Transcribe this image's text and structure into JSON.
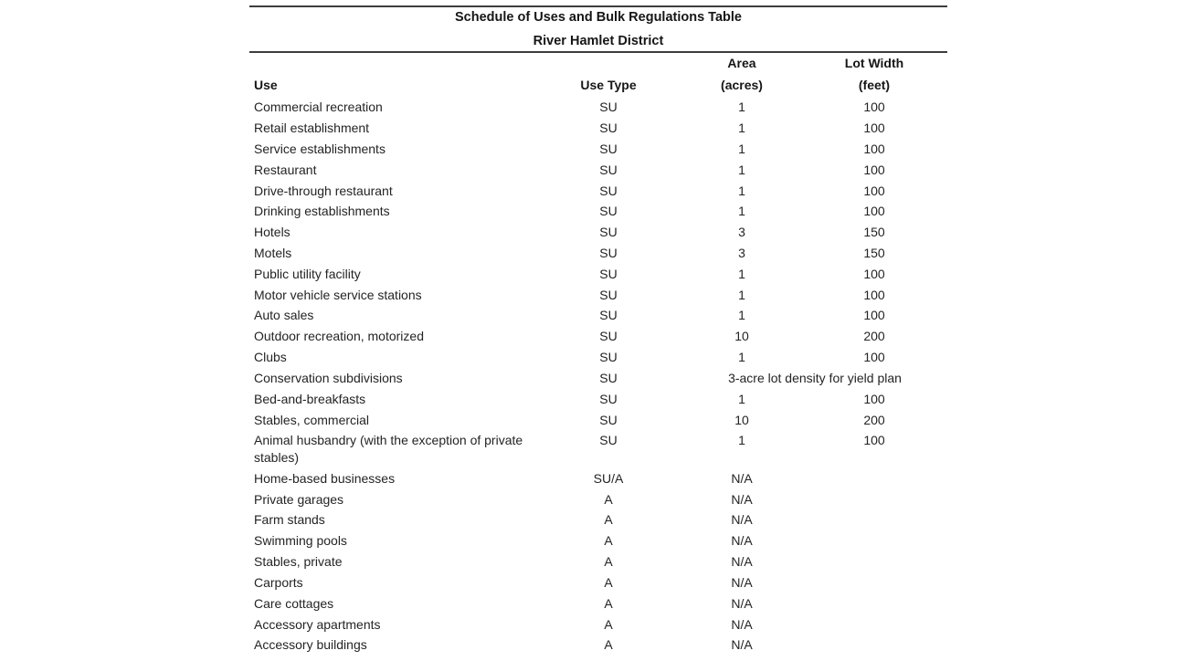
{
  "page": {
    "title": "Schedule of Uses and Bulk Regulations Table",
    "subtitle": "River Hamlet District"
  },
  "colors": {
    "text": "#242424",
    "heading_text": "#161616",
    "rule": "#3d3d3d",
    "background": "#ffffff"
  },
  "table": {
    "columns": [
      {
        "label_top": "",
        "label": "Use"
      },
      {
        "label_top": "",
        "label": "Use Type"
      },
      {
        "label_top": "Area",
        "label": "(acres)"
      },
      {
        "label_top": "Lot Width",
        "label": "(feet)"
      }
    ],
    "rows": [
      {
        "use": "Commercial recreation",
        "use_type": "SU",
        "area": "1",
        "lot_width": "100"
      },
      {
        "use": "Retail establishment",
        "use_type": "SU",
        "area": "1",
        "lot_width": "100"
      },
      {
        "use": "Service establishments",
        "use_type": "SU",
        "area": "1",
        "lot_width": "100"
      },
      {
        "use": "Restaurant",
        "use_type": "SU",
        "area": "1",
        "lot_width": "100"
      },
      {
        "use": "Drive-through restaurant",
        "use_type": "SU",
        "area": "1",
        "lot_width": "100"
      },
      {
        "use": "Drinking establishments",
        "use_type": "SU",
        "area": "1",
        "lot_width": "100"
      },
      {
        "use": "Hotels",
        "use_type": "SU",
        "area": "3",
        "lot_width": "150"
      },
      {
        "use": "Motels",
        "use_type": "SU",
        "area": "3",
        "lot_width": "150"
      },
      {
        "use": "Public utility facility",
        "use_type": "SU",
        "area": "1",
        "lot_width": "100"
      },
      {
        "use": "Motor vehicle service stations",
        "use_type": "SU",
        "area": "1",
        "lot_width": "100"
      },
      {
        "use": "Auto sales",
        "use_type": "SU",
        "area": "1",
        "lot_width": "100"
      },
      {
        "use": "Outdoor recreation, motorized",
        "use_type": "SU",
        "area": "10",
        "lot_width": "200"
      },
      {
        "use": "Clubs",
        "use_type": "SU",
        "area": "1",
        "lot_width": "100"
      },
      {
        "use": "Conservation subdivisions",
        "use_type": "SU",
        "area_span": "3-acre lot density for yield plan"
      },
      {
        "use": "Bed-and-breakfasts",
        "use_type": "SU",
        "area": "1",
        "lot_width": "100"
      },
      {
        "use": "Stables, commercial",
        "use_type": "SU",
        "area": "10",
        "lot_width": "200"
      },
      {
        "use": "Animal husbandry (with the exception of private stables)",
        "use_type": "SU",
        "area": "1",
        "lot_width": "100"
      },
      {
        "use": "Home-based businesses",
        "use_type": "SU/A",
        "area": "N/A",
        "lot_width": ""
      },
      {
        "use": "Private garages",
        "use_type": "A",
        "area": "N/A",
        "lot_width": ""
      },
      {
        "use": "Farm stands",
        "use_type": "A",
        "area": "N/A",
        "lot_width": ""
      },
      {
        "use": "Swimming pools",
        "use_type": "A",
        "area": "N/A",
        "lot_width": ""
      },
      {
        "use": "Stables, private",
        "use_type": "A",
        "area": "N/A",
        "lot_width": ""
      },
      {
        "use": "Carports",
        "use_type": "A",
        "area": "N/A",
        "lot_width": ""
      },
      {
        "use": "Care cottages",
        "use_type": "A",
        "area": "N/A",
        "lot_width": ""
      },
      {
        "use": "Accessory apartments",
        "use_type": "A",
        "area": "N/A",
        "lot_width": ""
      },
      {
        "use": "Accessory buildings",
        "use_type": "A",
        "area": "N/A",
        "lot_width": ""
      }
    ]
  }
}
